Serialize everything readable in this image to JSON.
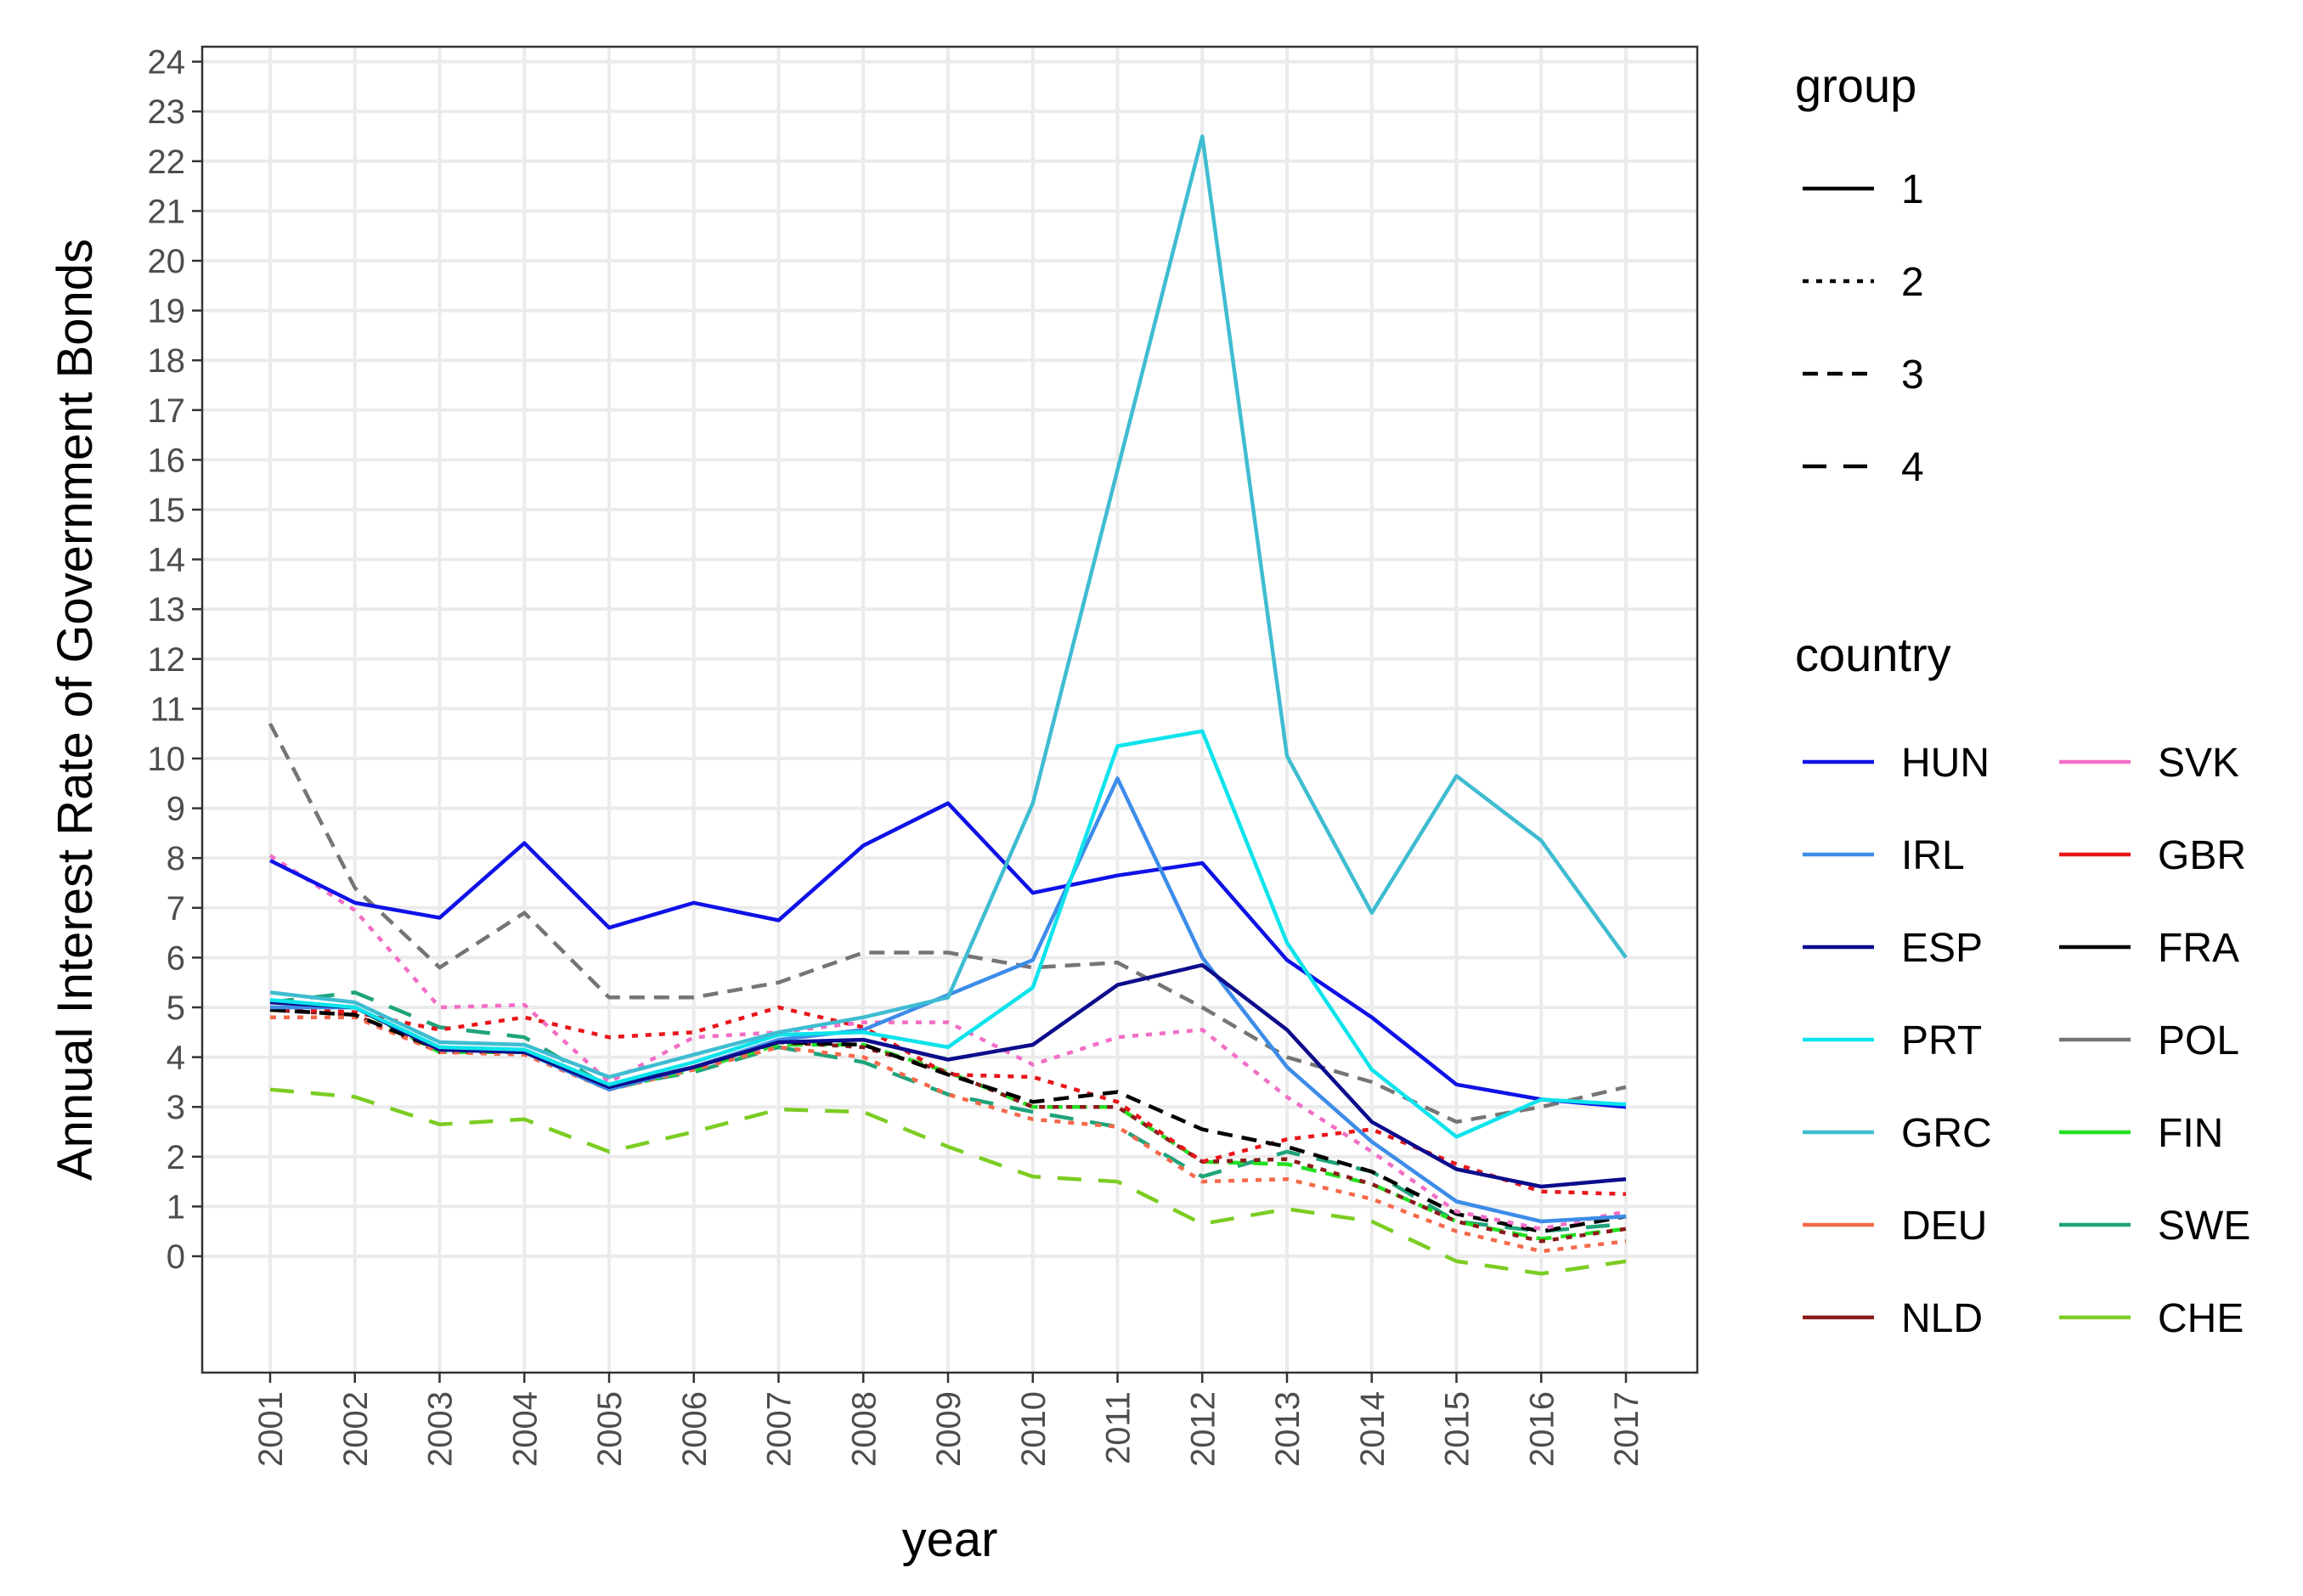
{
  "chart_data": {
    "type": "line",
    "title": "",
    "xlabel": "year",
    "ylabel": "Annual Interest Rate of Government Bonds",
    "x": [
      "2001",
      "2002",
      "2003",
      "2004",
      "2005",
      "2006",
      "2007",
      "2008",
      "2009",
      "2010",
      "2011",
      "2012",
      "2013",
      "2014",
      "2015",
      "2016",
      "2017"
    ],
    "ylim": [
      -2.2,
      24.3
    ],
    "yticks": [
      0,
      1,
      2,
      3,
      4,
      5,
      6,
      7,
      8,
      9,
      10,
      11,
      12,
      13,
      14,
      15,
      16,
      17,
      18,
      19,
      20,
      21,
      22,
      23,
      24
    ],
    "ytick_labels": [
      "0",
      "1",
      "2",
      "3",
      "4",
      "5",
      "6",
      "7",
      "8",
      "9",
      "10",
      "11",
      "12",
      "13",
      "14",
      "15",
      "16",
      "17",
      "18",
      "19",
      "20",
      "21",
      "22",
      "23",
      "24"
    ],
    "grid": true,
    "legend_position": "right",
    "group_legend": {
      "title": "group",
      "entries": [
        {
          "label": "1",
          "dash": "solid"
        },
        {
          "label": "2",
          "dash": "dotted"
        },
        {
          "label": "3",
          "dash": "dashed"
        },
        {
          "label": "4",
          "dash": "longdash"
        }
      ]
    },
    "country_legend": {
      "title": "country",
      "entries": [
        "HUN",
        "IRL",
        "ESP",
        "PRT",
        "GRC",
        "DEU",
        "NLD",
        "SVK",
        "GBR",
        "FRA",
        "POL",
        "FIN",
        "SWE",
        "CHE"
      ]
    },
    "series": [
      {
        "name": "POL",
        "group": "3",
        "color": "#757575",
        "values": [
          10.7,
          7.4,
          5.8,
          6.9,
          5.2,
          5.2,
          5.5,
          6.1,
          6.1,
          5.8,
          5.9,
          5.0,
          4.0,
          3.5,
          2.7,
          3.0,
          3.4
        ]
      },
      {
        "name": "CHE",
        "group": "4",
        "color": "#7CCD23",
        "values": [
          3.35,
          3.2,
          2.65,
          2.75,
          2.1,
          2.5,
          2.95,
          2.9,
          2.2,
          1.6,
          1.5,
          0.65,
          0.95,
          0.7,
          -0.1,
          -0.35,
          -0.1
        ]
      },
      {
        "name": "SWE",
        "group": "4",
        "color": "#1FA37A",
        "values": [
          5.1,
          5.3,
          4.6,
          4.4,
          3.4,
          3.7,
          4.2,
          3.9,
          3.25,
          2.9,
          2.6,
          1.6,
          2.1,
          1.7,
          0.7,
          0.5,
          0.65
        ]
      },
      {
        "name": "FIN",
        "group": "3",
        "color": "#22E022",
        "values": [
          5.0,
          5.0,
          4.1,
          4.1,
          3.35,
          3.75,
          4.25,
          4.25,
          3.7,
          3.0,
          3.0,
          1.9,
          1.85,
          1.45,
          0.7,
          0.35,
          0.55
        ]
      },
      {
        "name": "NLD",
        "group": "2",
        "color": "#8B1A1A",
        "values": [
          4.95,
          4.85,
          4.1,
          4.1,
          3.35,
          3.8,
          4.3,
          4.2,
          3.7,
          3.0,
          3.0,
          1.9,
          1.95,
          1.45,
          0.7,
          0.3,
          0.55
        ]
      },
      {
        "name": "DEU",
        "group": "2",
        "color": "#F5694B",
        "values": [
          4.8,
          4.8,
          4.1,
          4.05,
          3.35,
          3.75,
          4.2,
          4.0,
          3.25,
          2.75,
          2.6,
          1.5,
          1.55,
          1.15,
          0.5,
          0.1,
          0.3
        ]
      },
      {
        "name": "GBR",
        "group": "2",
        "color": "#E8161A",
        "values": [
          5.0,
          4.9,
          4.55,
          4.8,
          4.4,
          4.5,
          5.0,
          4.6,
          3.65,
          3.6,
          3.1,
          1.9,
          2.35,
          2.55,
          1.85,
          1.3,
          1.25
        ]
      },
      {
        "name": "FRA",
        "group": "3",
        "color": "#000000",
        "values": [
          4.95,
          4.85,
          4.15,
          4.1,
          3.4,
          3.8,
          4.3,
          4.25,
          3.65,
          3.1,
          3.3,
          2.55,
          2.2,
          1.7,
          0.85,
          0.5,
          0.8
        ]
      },
      {
        "name": "SVK",
        "group": "2",
        "color": "#F26EC6",
        "values": [
          8.05,
          6.95,
          5.0,
          5.05,
          3.5,
          4.4,
          4.5,
          4.7,
          4.7,
          3.85,
          4.4,
          4.55,
          3.2,
          2.1,
          0.9,
          0.55,
          0.9
        ]
      },
      {
        "name": "HUN",
        "group": "1",
        "color": "#0F12E6",
        "values": [
          7.95,
          7.1,
          6.8,
          8.3,
          6.6,
          7.1,
          6.75,
          8.25,
          9.1,
          7.3,
          7.65,
          7.9,
          5.95,
          4.8,
          3.45,
          3.15,
          3.0
        ]
      },
      {
        "name": "IRL",
        "group": "1",
        "color": "#3D8CE8",
        "values": [
          5.0,
          5.0,
          4.15,
          4.1,
          3.35,
          3.8,
          4.35,
          4.55,
          5.25,
          5.95,
          9.6,
          6.0,
          3.8,
          2.3,
          1.1,
          0.7,
          0.8
        ]
      },
      {
        "name": "ESP",
        "group": "1",
        "color": "#0C0C8C",
        "values": [
          5.1,
          5.0,
          4.15,
          4.1,
          3.4,
          3.8,
          4.3,
          4.35,
          3.95,
          4.25,
          5.45,
          5.85,
          4.55,
          2.7,
          1.75,
          1.4,
          1.55
        ]
      },
      {
        "name": "PRT",
        "group": "1",
        "color": "#0DE3EB",
        "values": [
          5.15,
          5.0,
          4.2,
          4.15,
          3.45,
          3.9,
          4.45,
          4.5,
          4.2,
          5.4,
          10.25,
          10.55,
          6.3,
          3.75,
          2.4,
          3.15,
          3.05
        ]
      },
      {
        "name": "GRC",
        "group": "1",
        "color": "#3FBCD1",
        "values": [
          5.3,
          5.1,
          4.3,
          4.25,
          3.6,
          4.05,
          4.5,
          4.8,
          5.2,
          9.1,
          15.8,
          22.5,
          10.05,
          6.9,
          9.65,
          8.35,
          6.0
        ]
      }
    ]
  }
}
